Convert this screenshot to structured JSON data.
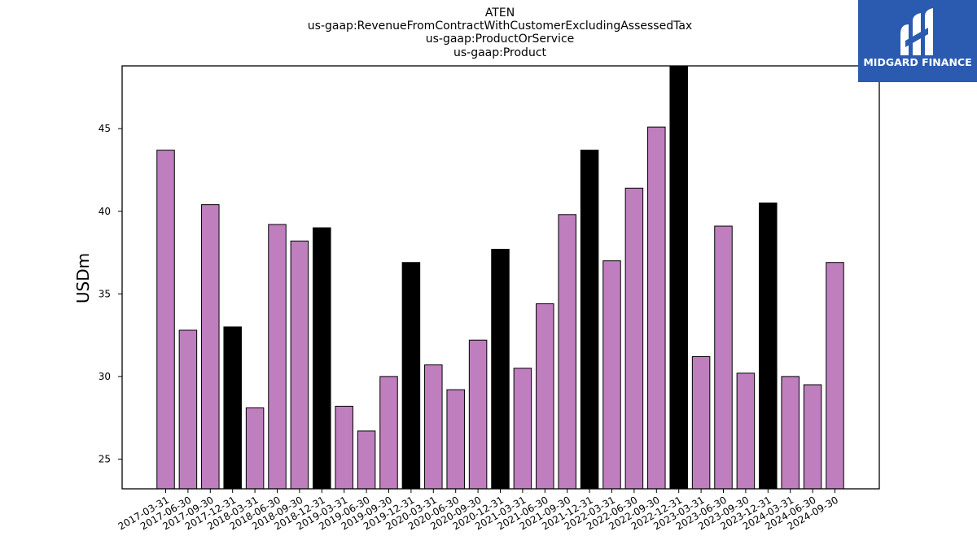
{
  "chart_data": {
    "type": "bar",
    "title_lines": [
      "ATEN",
      "us-gaap:RevenueFromContractWithCustomerExcludingAssessedTax",
      "us-gaap:ProductOrService",
      "us-gaap:Product"
    ],
    "ylabel": "USDm",
    "xlabel": "",
    "ylim": [
      23.2,
      48.8
    ],
    "yticks": [
      25,
      30,
      35,
      40,
      45
    ],
    "categories": [
      "2017-03-31",
      "2017-06-30",
      "2017-09-30",
      "2017-12-31",
      "2018-03-31",
      "2018-06-30",
      "2018-09-30",
      "2018-12-31",
      "2019-03-31",
      "2019-06-30",
      "2019-09-30",
      "2019-12-31",
      "2020-03-31",
      "2020-06-30",
      "2020-09-30",
      "2020-12-31",
      "2021-03-31",
      "2021-06-30",
      "2021-09-30",
      "2021-12-31",
      "2022-03-31",
      "2022-06-30",
      "2022-09-30",
      "2022-12-31",
      "2023-03-31",
      "2023-06-30",
      "2023-09-30",
      "2023-12-31",
      "2024-03-31",
      "2024-06-30",
      "2024-09-30"
    ],
    "values": [
      43.7,
      32.8,
      40.4,
      33.0,
      28.1,
      39.2,
      38.2,
      39.0,
      28.2,
      26.7,
      30.0,
      36.9,
      30.7,
      29.2,
      32.2,
      37.7,
      30.5,
      34.4,
      39.8,
      43.7,
      37.0,
      41.4,
      45.1,
      48.8,
      31.2,
      39.1,
      30.2,
      40.5,
      30.0,
      29.5,
      36.9
    ],
    "highlight_quarter": "12-31",
    "colors": {
      "bar": "#bf7fbf",
      "highlight_bar": "#000000",
      "edge": "#000000"
    },
    "grid": false,
    "legend": "none"
  },
  "logo": {
    "text": "MIDGARD FINANCE",
    "background": "#2b5bb0"
  }
}
